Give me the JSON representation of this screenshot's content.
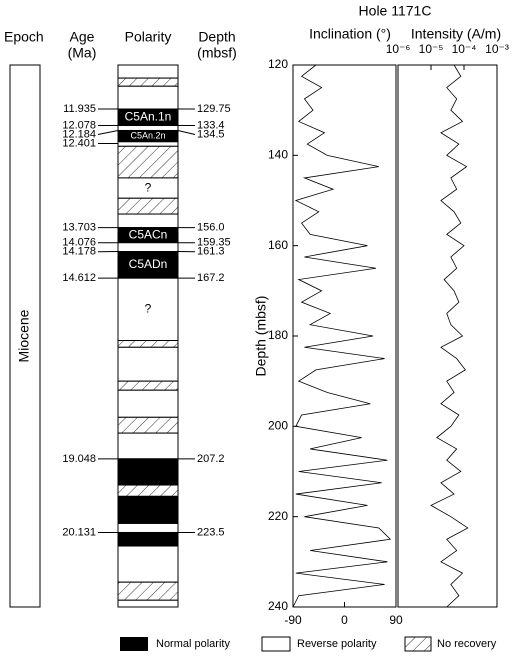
{
  "chart_data": {
    "type": "line",
    "title": "Hole 1171C",
    "y_label": "Depth (mbsf)",
    "ylim": [
      120,
      240
    ],
    "yticks": [
      120,
      140,
      160,
      180,
      200,
      220,
      240
    ],
    "depth": [
      120,
      122.5,
      125,
      127.5,
      130,
      132.5,
      135,
      137.5,
      140,
      142.5,
      145,
      147.5,
      150,
      152.5,
      155,
      157.5,
      160,
      162.5,
      165,
      167.5,
      170,
      172.5,
      175,
      177.5,
      180,
      182.5,
      185,
      187.5,
      190,
      192.5,
      195,
      197.5,
      200,
      202.5,
      205,
      207.5,
      210,
      212.5,
      215,
      217.5,
      220,
      222.5,
      225,
      227.5,
      230,
      232.5,
      235,
      237.5,
      240
    ],
    "panels": [
      {
        "name": "Inclination (°)",
        "color": "#000000",
        "xlim": [
          -90,
          90
        ],
        "xticks": [
          -90,
          0,
          90
        ],
        "values": [
          -50,
          -75,
          -40,
          -70,
          -55,
          -80,
          -35,
          -65,
          -30,
          60,
          -70,
          -20,
          -85,
          -45,
          -75,
          -60,
          40,
          -70,
          55,
          -80,
          -40,
          -75,
          -25,
          -60,
          50,
          -70,
          70,
          -50,
          -80,
          -30,
          45,
          -75,
          -85,
          30,
          -60,
          75,
          -80,
          65,
          -85,
          40,
          -70,
          60,
          80,
          -60,
          75,
          -85,
          70,
          -80,
          -90
        ]
      },
      {
        "name": "Intensity (A/m)",
        "color": "#000000",
        "log_scale": true,
        "xlim": [
          1e-06,
          0.001
        ],
        "xticks": [
          {
            "value": 1e-06,
            "label": "10⁻⁶"
          },
          {
            "value": 1e-05,
            "label": "10⁻⁵"
          },
          {
            "value": 0.0001,
            "label": "10⁻⁴"
          },
          {
            "value": 0.001,
            "label": "10⁻³"
          }
        ],
        "values": [
          5e-05,
          8e-05,
          3e-05,
          6e-05,
          4e-05,
          9e-05,
          2e-05,
          7e-05,
          3e-05,
          0.00012,
          4e-05,
          6e-05,
          2e-05,
          5e-05,
          8e-05,
          3e-05,
          0.0001,
          4e-05,
          6e-05,
          2.5e-05,
          5e-05,
          7e-05,
          3e-05,
          4e-05,
          9e-05,
          2e-05,
          6e-05,
          0.00011,
          3e-05,
          5e-05,
          2e-05,
          7e-05,
          4e-05,
          1.5e-05,
          6e-05,
          3e-05,
          8e-05,
          2e-05,
          5e-05,
          1e-05,
          4e-05,
          0.00013,
          3e-05,
          6e-05,
          2e-05,
          9e-05,
          4e-05,
          7e-05,
          3e-05
        ]
      }
    ]
  },
  "stratigraphy": {
    "headers": {
      "epoch": "Epoch",
      "age": [
        "Age",
        "(Ma)"
      ],
      "polarity": "Polarity",
      "depth": [
        "Depth",
        "(mbsf)"
      ]
    },
    "epoch": "Miocene",
    "blocks": [
      {
        "top": 120,
        "bottom": 122.9,
        "kind": "reverse"
      },
      {
        "top": 122.9,
        "bottom": 124.7,
        "kind": "no_recovery"
      },
      {
        "top": 124.7,
        "bottom": 129.75,
        "kind": "reverse"
      },
      {
        "top": 129.75,
        "bottom": 133.4,
        "kind": "normal",
        "name": "C5An.1n"
      },
      {
        "top": 133.4,
        "bottom": 134.5,
        "kind": "reverse"
      },
      {
        "top": 134.5,
        "bottom": 137,
        "kind": "normal",
        "name": "C5An.2n"
      },
      {
        "top": 137,
        "bottom": 138,
        "kind": "reverse"
      },
      {
        "top": 138,
        "bottom": 145,
        "kind": "no_recovery"
      },
      {
        "top": 145,
        "bottom": 149.5,
        "kind": "reverse",
        "name": "?"
      },
      {
        "top": 149.5,
        "bottom": 153,
        "kind": "no_recovery"
      },
      {
        "top": 153,
        "bottom": 156,
        "kind": "reverse"
      },
      {
        "top": 156,
        "bottom": 159.35,
        "kind": "normal",
        "name": "C5ACn"
      },
      {
        "top": 159.35,
        "bottom": 161.3,
        "kind": "reverse"
      },
      {
        "top": 161.3,
        "bottom": 167.2,
        "kind": "normal",
        "name": "C5ADn"
      },
      {
        "top": 167.2,
        "bottom": 181,
        "kind": "reverse",
        "name": "?"
      },
      {
        "top": 181,
        "bottom": 182.5,
        "kind": "no_recovery"
      },
      {
        "top": 182.5,
        "bottom": 190,
        "kind": "reverse"
      },
      {
        "top": 190,
        "bottom": 192,
        "kind": "no_recovery"
      },
      {
        "top": 192,
        "bottom": 198,
        "kind": "reverse"
      },
      {
        "top": 198,
        "bottom": 201.5,
        "kind": "no_recovery"
      },
      {
        "top": 201.5,
        "bottom": 207.2,
        "kind": "reverse"
      },
      {
        "top": 207.2,
        "bottom": 213,
        "kind": "normal"
      },
      {
        "top": 213,
        "bottom": 215.5,
        "kind": "no_recovery"
      },
      {
        "top": 215.5,
        "bottom": 221.5,
        "kind": "normal"
      },
      {
        "top": 221.5,
        "bottom": 223.5,
        "kind": "reverse"
      },
      {
        "top": 223.5,
        "bottom": 226.5,
        "kind": "normal"
      },
      {
        "top": 226.5,
        "bottom": 234.5,
        "kind": "reverse"
      },
      {
        "top": 234.5,
        "bottom": 238.5,
        "kind": "no_recovery"
      },
      {
        "top": 238.5,
        "bottom": 240,
        "kind": "reverse"
      }
    ],
    "ties": [
      {
        "age": 11.935,
        "depth": 129.75
      },
      {
        "age": 12.078,
        "depth": 133.4
      },
      {
        "age": 12.184,
        "depth": 134.5
      },
      {
        "age": 12.401,
        "depth": null
      },
      {
        "age": 13.703,
        "depth": {
          "value": 156,
          "label": "156.0"
        }
      },
      {
        "age": 14.076,
        "depth": 159.35
      },
      {
        "age": 14.178,
        "depth": 161.3
      },
      {
        "age": 14.612,
        "depth": 167.2
      },
      {
        "age": 19.048,
        "depth": 207.2
      },
      {
        "age": 20.131,
        "depth": 223.5
      }
    ]
  },
  "legend": {
    "normal": "Normal polarity",
    "reverse": "Reverse polarity",
    "no_recovery": "No recovery"
  }
}
